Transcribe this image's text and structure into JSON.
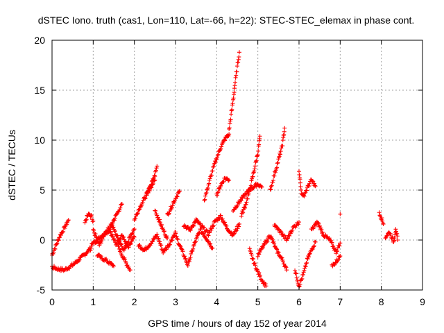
{
  "chart_data": {
    "type": "scatter",
    "title": "dSTEC Iono. truth (cas1, Lon=110, Lat=-66, h=22): STEC-STEC_elemax in phase cont.",
    "xlabel": "GPS time / hours of day 152 of year 2014",
    "ylabel": "dSTEC  / TECUs",
    "xlim": [
      0,
      9
    ],
    "ylim": [
      -5,
      20
    ],
    "xticks": [
      "0",
      "1",
      "2",
      "3",
      "4",
      "5",
      "6",
      "7",
      "8",
      "9"
    ],
    "yticks": [
      "-5",
      "0",
      "5",
      "10",
      "15",
      "20"
    ],
    "grid": true,
    "marker": "plus",
    "color": "#ff0000",
    "arcs": [
      {
        "x": [
          0.0,
          0.1,
          0.2,
          0.3,
          0.4
        ],
        "y": [
          -1.5,
          -0.5,
          0.5,
          1.2,
          2.0
        ]
      },
      {
        "x": [
          0.0,
          0.15,
          0.3,
          0.5,
          0.7,
          0.85,
          0.95
        ],
        "y": [
          -2.7,
          -2.9,
          -3.0,
          -2.5,
          -1.8,
          -1.2,
          -0.8
        ]
      },
      {
        "x": [
          0.8,
          0.85,
          0.9,
          0.95,
          1.0
        ],
        "y": [
          1.8,
          2.3,
          2.6,
          2.4,
          1.9
        ]
      },
      {
        "x": [
          0.95,
          1.1,
          1.25,
          1.4,
          1.55,
          1.7,
          1.85,
          2.0
        ],
        "y": [
          -0.5,
          0.0,
          0.6,
          1.0,
          -0.4,
          0.5,
          -0.8,
          0.3
        ]
      },
      {
        "x": [
          1.0,
          1.15,
          1.3,
          1.45,
          1.6,
          1.75,
          1.9,
          2.0
        ],
        "y": [
          1.0,
          -0.5,
          0.8,
          1.5,
          0.2,
          -1.0,
          0.4,
          1.1
        ]
      },
      {
        "x": [
          1.1,
          1.2,
          1.3,
          1.4,
          1.5
        ],
        "y": [
          -1.5,
          -1.8,
          -2.0,
          -2.3,
          -2.6
        ]
      },
      {
        "x": [
          1.4,
          1.5,
          1.6,
          1.7
        ],
        "y": [
          1.2,
          2.0,
          2.8,
          3.6
        ]
      },
      {
        "x": [
          1.6,
          1.7,
          1.8,
          1.9
        ],
        "y": [
          -0.5,
          -1.5,
          -2.3,
          -3.0
        ]
      },
      {
        "x": [
          2.0,
          2.1,
          2.2,
          2.3,
          2.4,
          2.5
        ],
        "y": [
          2.0,
          3.0,
          3.8,
          4.6,
          5.3,
          6.0
        ]
      },
      {
        "x": [
          2.1,
          2.25,
          2.4,
          2.55,
          2.7,
          2.85,
          3.0
        ],
        "y": [
          -0.5,
          -1.0,
          -0.3,
          0.5,
          -1.2,
          -0.4,
          0.8
        ]
      },
      {
        "x": [
          2.3,
          2.4,
          2.5,
          2.55
        ],
        "y": [
          4.5,
          5.5,
          6.5,
          7.4
        ]
      },
      {
        "x": [
          2.5,
          2.6,
          2.7,
          2.8
        ],
        "y": [
          3.0,
          2.0,
          1.0,
          0.2
        ]
      },
      {
        "x": [
          2.8,
          2.9,
          3.0,
          3.1
        ],
        "y": [
          2.5,
          3.3,
          4.2,
          4.9
        ]
      },
      {
        "x": [
          3.0,
          3.15,
          3.3,
          3.45,
          3.6,
          3.75,
          3.9
        ],
        "y": [
          0.5,
          -1.0,
          -2.5,
          -0.5,
          1.0,
          0.2,
          -0.8
        ]
      },
      {
        "x": [
          3.2,
          3.35,
          3.5,
          3.65,
          3.8,
          3.95,
          4.1,
          4.25,
          4.4,
          4.55
        ],
        "y": [
          1.5,
          1.0,
          2.0,
          1.3,
          0.6,
          1.8,
          2.4,
          1.2,
          0.5,
          1.6
        ]
      },
      {
        "x": [
          3.7,
          3.8,
          3.9,
          4.0,
          4.1,
          4.2,
          4.3
        ],
        "y": [
          4.0,
          5.5,
          7.0,
          8.2,
          9.3,
          10.1,
          10.6
        ]
      },
      {
        "x": [
          4.3,
          4.35,
          4.4,
          4.45,
          4.5,
          4.55
        ],
        "y": [
          11.0,
          12.5,
          14.0,
          15.8,
          17.3,
          18.8
        ]
      },
      {
        "x": [
          4.0,
          4.1,
          4.2,
          4.3
        ],
        "y": [
          4.5,
          5.5,
          6.2,
          6.0
        ]
      },
      {
        "x": [
          4.4,
          4.55,
          4.7,
          4.85,
          5.0,
          5.1
        ],
        "y": [
          3.0,
          3.8,
          4.6,
          5.2,
          5.6,
          5.3
        ]
      },
      {
        "x": [
          4.6,
          4.7,
          4.8,
          4.9,
          5.0,
          5.05
        ],
        "y": [
          2.5,
          3.5,
          5.0,
          6.8,
          8.7,
          10.4
        ]
      },
      {
        "x": [
          4.8,
          4.9,
          5.0,
          5.1,
          5.2
        ],
        "y": [
          -1.0,
          -2.2,
          -3.2,
          -4.0,
          -4.6
        ]
      },
      {
        "x": [
          5.0,
          5.15,
          5.3,
          5.45,
          5.6,
          5.7
        ],
        "y": [
          -1.5,
          -0.5,
          0.5,
          -1.0,
          -2.0,
          -3.0
        ]
      },
      {
        "x": [
          5.3,
          5.4,
          5.5,
          5.6,
          5.65
        ],
        "y": [
          5.0,
          6.5,
          8.0,
          9.6,
          11.2
        ]
      },
      {
        "x": [
          5.4,
          5.55,
          5.7,
          5.85,
          6.0
        ],
        "y": [
          1.5,
          0.8,
          0.0,
          1.2,
          1.8
        ]
      },
      {
        "x": [
          5.9,
          6.0,
          6.1,
          6.2,
          6.3,
          6.4
        ],
        "y": [
          -3.0,
          -4.6,
          -3.5,
          -2.0,
          -1.0,
          -0.2
        ]
      },
      {
        "x": [
          6.0,
          6.05,
          6.1,
          6.2,
          6.3,
          6.4
        ],
        "y": [
          7.0,
          5.0,
          4.3,
          5.2,
          6.0,
          5.4
        ]
      },
      {
        "x": [
          6.3,
          6.45,
          6.6,
          6.75,
          6.9,
          7.0
        ],
        "y": [
          1.0,
          1.8,
          0.5,
          0.0,
          -1.2,
          -0.3
        ]
      },
      {
        "x": [
          6.8,
          6.9,
          7.0
        ],
        "y": [
          -2.6,
          -2.2,
          -1.6
        ]
      },
      {
        "x": [
          7.0
        ],
        "y": [
          2.6
        ]
      },
      {
        "x": [
          7.95,
          8.0,
          8.05
        ],
        "y": [
          2.8,
          2.2,
          1.6
        ]
      },
      {
        "x": [
          8.1,
          8.2,
          8.3,
          8.35,
          8.4
        ],
        "y": [
          0.3,
          0.8,
          -0.2,
          1.2,
          0.0
        ]
      }
    ]
  }
}
